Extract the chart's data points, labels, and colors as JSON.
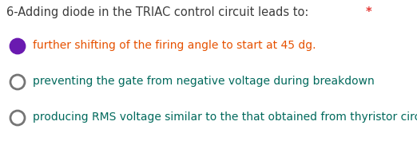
{
  "title": "6-Adding diode in the TRIAC control circuit leads to:",
  "title_color": "#3d3d3d",
  "asterisk": "*",
  "asterisk_color": "#e53935",
  "background_color": "#ffffff",
  "options": [
    {
      "text": "further shifting of the firing angle to start at 45 dg.",
      "text_color": "#e65100",
      "selected": true,
      "radio_outer_color": "#6a1ab0",
      "radio_inner_color": "#6a1ab0"
    },
    {
      "text": "preventing the gate from negative voltage during breakdown",
      "text_color": "#00695c",
      "selected": false,
      "radio_outer_color": "#757575",
      "radio_inner_color": "#ffffff"
    },
    {
      "text": "producing RMS voltage similar to the that obtained from thyristor circuit",
      "text_color": "#00695c",
      "selected": false,
      "radio_outer_color": "#757575",
      "radio_inner_color": "#ffffff"
    }
  ],
  "font_size_title": 10.5,
  "font_size_options": 10.0,
  "figsize": [
    5.22,
    1.77
  ],
  "dpi": 100
}
